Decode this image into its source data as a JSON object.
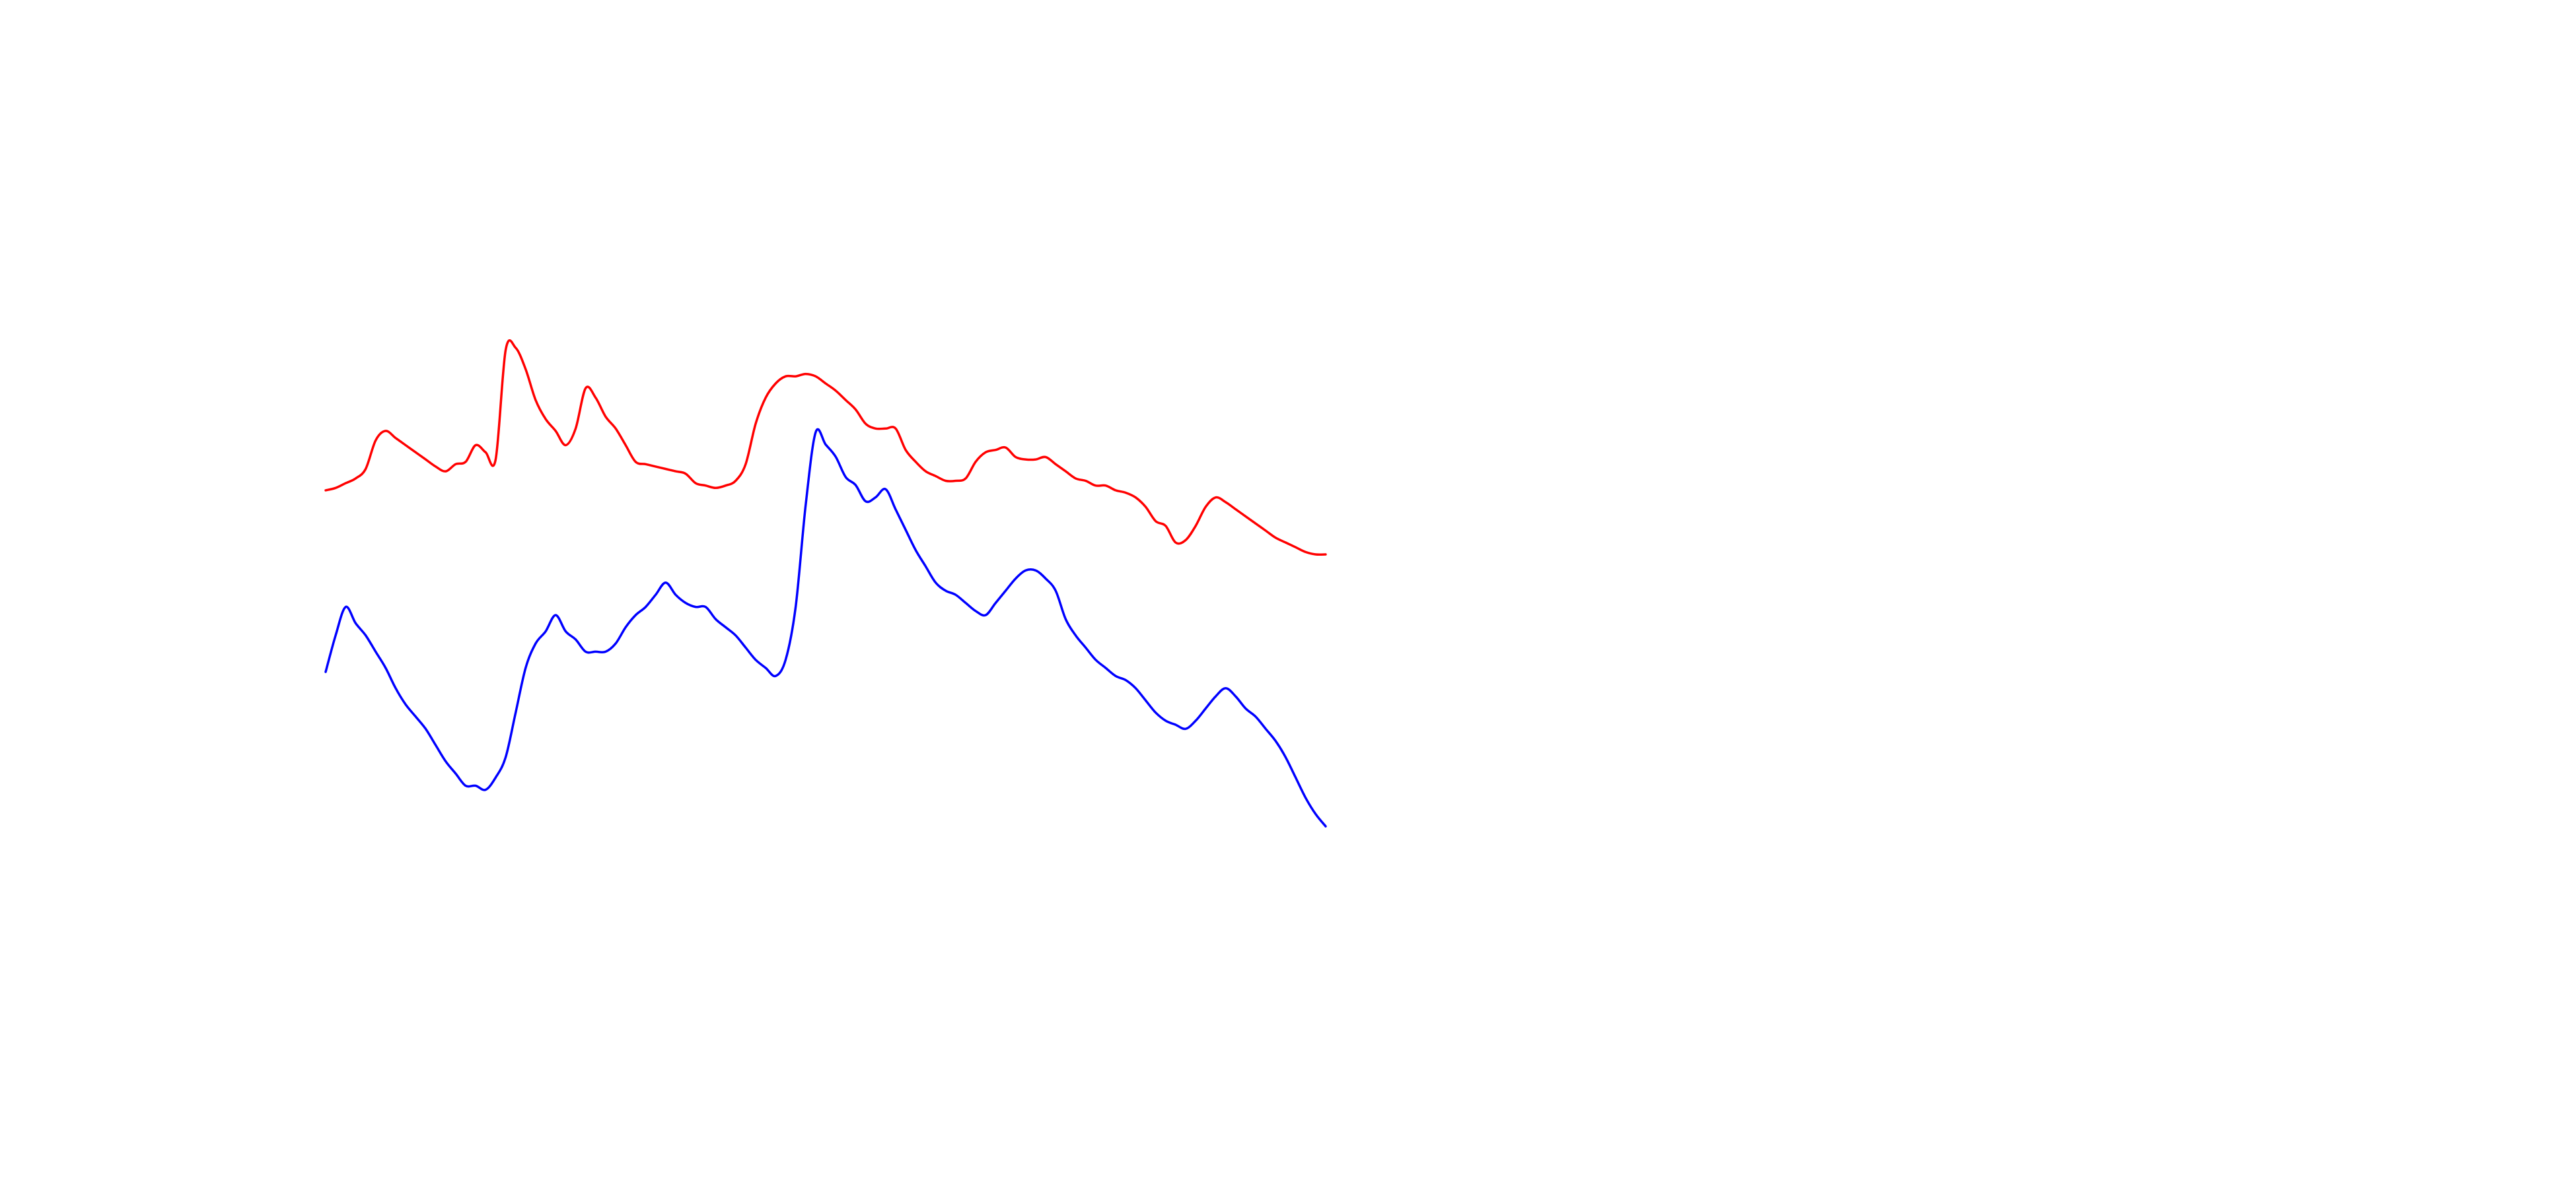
{
  "chart_data": {
    "type": "line",
    "xlabel": "",
    "ylabel": "",
    "grid": false,
    "legend": "none",
    "x": [
      0.0,
      0.01,
      0.02,
      0.03,
      0.04,
      0.05,
      0.06,
      0.07,
      0.08,
      0.09,
      0.1,
      0.11,
      0.12,
      0.13,
      0.14,
      0.15,
      0.16,
      0.17,
      0.18,
      0.19,
      0.2,
      0.21,
      0.22,
      0.23,
      0.24,
      0.25,
      0.26,
      0.27,
      0.28,
      0.29,
      0.3,
      0.31,
      0.32,
      0.33,
      0.34,
      0.35,
      0.36,
      0.37,
      0.38,
      0.39,
      0.4,
      0.41,
      0.42,
      0.43,
      0.44,
      0.45,
      0.46,
      0.47,
      0.48,
      0.49,
      0.5,
      0.51,
      0.52,
      0.53,
      0.54,
      0.55,
      0.56,
      0.57,
      0.58,
      0.59,
      0.6,
      0.61,
      0.62,
      0.63,
      0.64,
      0.65,
      0.66,
      0.67,
      0.68,
      0.69,
      0.7,
      0.71,
      0.72,
      0.73,
      0.74,
      0.75,
      0.76,
      0.77,
      0.78,
      0.79,
      0.8,
      0.81,
      0.82,
      0.83,
      0.84,
      0.85,
      0.86,
      0.87,
      0.88,
      0.89,
      0.9,
      0.91,
      0.92,
      0.93,
      0.94,
      0.95,
      0.96,
      0.97,
      0.98,
      0.99,
      1.0
    ],
    "series": [
      {
        "color": "#ff0000",
        "values": [
          0.27,
          0.28,
          0.3,
          0.32,
          0.36,
          0.48,
          0.52,
          0.49,
          0.46,
          0.43,
          0.4,
          0.37,
          0.35,
          0.38,
          0.39,
          0.46,
          0.43,
          0.4,
          0.86,
          0.87,
          0.78,
          0.65,
          0.57,
          0.52,
          0.46,
          0.53,
          0.7,
          0.66,
          0.58,
          0.53,
          0.46,
          0.39,
          0.38,
          0.37,
          0.36,
          0.35,
          0.34,
          0.3,
          0.29,
          0.28,
          0.29,
          0.31,
          0.38,
          0.55,
          0.66,
          0.72,
          0.75,
          0.75,
          0.76,
          0.75,
          0.72,
          0.69,
          0.65,
          0.61,
          0.55,
          0.53,
          0.53,
          0.53,
          0.44,
          0.39,
          0.35,
          0.33,
          0.31,
          0.31,
          0.32,
          0.39,
          0.43,
          0.44,
          0.45,
          0.41,
          0.4,
          0.4,
          0.41,
          0.38,
          0.35,
          0.32,
          0.31,
          0.29,
          0.29,
          0.27,
          0.26,
          0.24,
          0.2,
          0.14,
          0.12,
          0.05,
          0.06,
          0.12,
          0.2,
          0.24,
          0.22,
          0.19,
          0.16,
          0.13,
          0.1,
          0.07,
          0.05,
          0.03,
          0.01,
          0.0,
          0.0
        ]
      },
      {
        "color": "#0000ff",
        "values": [
          0.38,
          0.47,
          0.54,
          0.5,
          0.47,
          0.43,
          0.39,
          0.34,
          0.3,
          0.27,
          0.24,
          0.2,
          0.16,
          0.13,
          0.1,
          0.1,
          0.09,
          0.12,
          0.17,
          0.28,
          0.39,
          0.45,
          0.48,
          0.52,
          0.48,
          0.46,
          0.43,
          0.43,
          0.43,
          0.45,
          0.49,
          0.52,
          0.54,
          0.57,
          0.6,
          0.57,
          0.55,
          0.54,
          0.54,
          0.51,
          0.49,
          0.47,
          0.44,
          0.41,
          0.39,
          0.37,
          0.41,
          0.54,
          0.79,
          0.97,
          0.94,
          0.91,
          0.86,
          0.84,
          0.8,
          0.81,
          0.83,
          0.78,
          0.73,
          0.68,
          0.64,
          0.6,
          0.58,
          0.57,
          0.55,
          0.53,
          0.52,
          0.55,
          0.58,
          0.61,
          0.63,
          0.63,
          0.61,
          0.58,
          0.51,
          0.47,
          0.44,
          0.41,
          0.39,
          0.37,
          0.36,
          0.34,
          0.31,
          0.28,
          0.26,
          0.25,
          0.24,
          0.26,
          0.29,
          0.32,
          0.34,
          0.32,
          0.29,
          0.27,
          0.24,
          0.21,
          0.17,
          0.12,
          0.07,
          0.03,
          0.0
        ]
      }
    ]
  }
}
